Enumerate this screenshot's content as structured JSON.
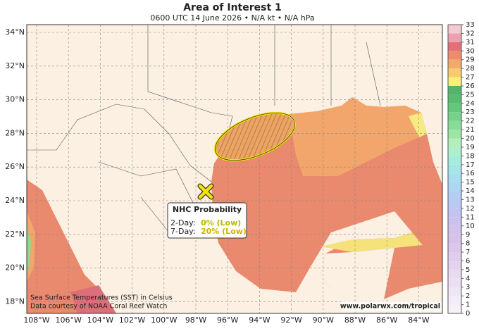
{
  "header": {
    "title": "Area of Interest 1",
    "subtitle": "0600 UTC 14 June 2026 • N/A kt • N/A hPa"
  },
  "map": {
    "lat_labels": [
      "34°N",
      "32°N",
      "30°N",
      "28°N",
      "26°N",
      "24°N",
      "22°N",
      "20°N",
      "18°N"
    ],
    "lon_labels": [
      "108°W",
      "106°W",
      "104°W",
      "102°W",
      "100°W",
      "98°W",
      "96°W",
      "94°W",
      "92°W",
      "90°W",
      "88°W",
      "86°W",
      "84°W"
    ]
  },
  "colorbar": {
    "ticks": [
      0,
      1,
      2,
      3,
      4,
      5,
      6,
      7,
      8,
      9,
      10,
      11,
      12,
      13,
      14,
      15,
      16,
      17,
      18,
      19,
      20,
      21,
      22,
      23,
      24,
      25,
      26,
      27,
      28,
      29,
      30,
      31,
      32,
      33
    ],
    "colors": [
      "#f6f0f8",
      "#f2ecf6",
      "#eee6f4",
      "#ebe0f2",
      "#e8daf0",
      "#e4d3ee",
      "#e0ccec",
      "#dcc6ea",
      "#d7c3ea",
      "#d2c2ec",
      "#cbc2ef",
      "#c3c4f2",
      "#bbc8f4",
      "#b3cef4",
      "#acd6f2",
      "#a6def0",
      "#a4e6e8",
      "#a6ecdc",
      "#aef0cc",
      "#b4eebd",
      "#9ee6a8",
      "#88dc98",
      "#76d28a",
      "#66c67c",
      "#5abc72",
      "#52b46a",
      "#f8f07a",
      "#f8cc6e",
      "#f2aa6c",
      "#ec8c6a",
      "#e2707a",
      "#eda0ae",
      "#f4cad2"
    ]
  },
  "callout": {
    "title": "NHC Probability",
    "day2_label": "2-Day:",
    "day2_value": "0% (Low)",
    "day7_label": "7-Day:",
    "day7_value": "20% (Low)"
  },
  "footer": {
    "note1": "Sea Surface Temperatures (SST) in Celsius",
    "note2": "Data courtesy of NOAA Coral Reef Watch",
    "watermark": "www.polarwx.com/tropical"
  }
}
